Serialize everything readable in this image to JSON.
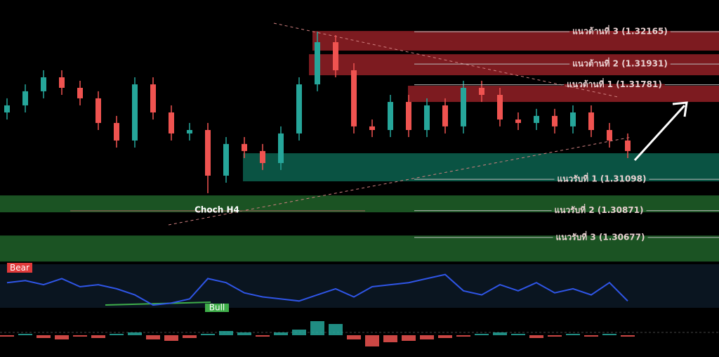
{
  "chart_data": {
    "type": "candlestick",
    "ylim": [
      1.30514,
      1.32394
    ],
    "open": [
      1.31581,
      1.31632,
      1.31734,
      1.31835,
      1.31759,
      1.31683,
      1.31505,
      1.31378,
      1.31784,
      1.31581,
      1.31429,
      1.31454,
      1.31124,
      1.31353,
      1.31302,
      1.31215,
      1.31429,
      1.31784,
      1.32089,
      1.31886,
      1.3148,
      1.31454,
      1.31657,
      1.31454,
      1.31632,
      1.3148,
      1.31759,
      1.31708,
      1.3153,
      1.31505,
      1.31556,
      1.3148,
      1.31581,
      1.31454,
      1.31378
    ],
    "high": [
      1.31683,
      1.31784,
      1.31886,
      1.31886,
      1.3181,
      1.31734,
      1.31556,
      1.31835,
      1.31835,
      1.31632,
      1.31505,
      1.31505,
      1.31403,
      1.31403,
      1.31353,
      1.3148,
      1.31835,
      1.32165,
      1.3214,
      1.31937,
      1.3153,
      1.31708,
      1.31708,
      1.31683,
      1.31683,
      1.3181,
      1.3181,
      1.31759,
      1.31581,
      1.31607,
      1.31607,
      1.31632,
      1.31632,
      1.31505,
      1.31429
    ],
    "low": [
      1.3153,
      1.31581,
      1.31683,
      1.31708,
      1.31632,
      1.31454,
      1.31327,
      1.31327,
      1.3153,
      1.31378,
      1.31378,
      1.30997,
      1.31073,
      1.31251,
      1.31165,
      1.31165,
      1.31378,
      1.31734,
      1.31835,
      1.31429,
      1.31403,
      1.31403,
      1.31403,
      1.31403,
      1.31429,
      1.31429,
      1.31657,
      1.3148,
      1.31454,
      1.31454,
      1.31429,
      1.31429,
      1.31403,
      1.31327,
      1.31251
    ],
    "close": [
      1.31632,
      1.31734,
      1.31835,
      1.31759,
      1.31683,
      1.31505,
      1.31378,
      1.31784,
      1.31581,
      1.31429,
      1.31454,
      1.31124,
      1.31353,
      1.31302,
      1.31215,
      1.31429,
      1.31784,
      1.32089,
      1.31886,
      1.3148,
      1.31454,
      1.31657,
      1.31454,
      1.31632,
      1.3148,
      1.31759,
      1.31708,
      1.3153,
      1.31505,
      1.31556,
      1.3148,
      1.31581,
      1.31454,
      1.31378,
      1.31302
    ],
    "up_color": "#26a69a",
    "down_color": "#ef5350",
    "levels": [
      {
        "label": "แนวต้านที่ 3 (1.32165)",
        "value": 1.32165,
        "low": 1.32028,
        "high": 1.3217,
        "color": "#8b1e24"
      },
      {
        "label": "แนวต้านที่ 2 (1.31931)",
        "value": 1.31931,
        "low": 1.3185,
        "high": 1.32002,
        "color": "#8b1e24"
      },
      {
        "label": "แนวต้านที่ 1 (1.31781)",
        "value": 1.31781,
        "low": 1.31657,
        "high": 1.31774,
        "color": "#8b1e24"
      },
      {
        "label": "แนวรับที่ 1 (1.31098)",
        "value": 1.31098,
        "low": 1.31083,
        "high": 1.31286,
        "color": "#0b5c4a"
      },
      {
        "label": "แนวรับที่ 2 (1.30871)",
        "value": 1.30871,
        "low": 1.30859,
        "high": 1.30981,
        "color": "#1e5c27"
      },
      {
        "label": "แนวรับที่ 3 (1.30677)",
        "value": 1.30677,
        "low": 1.30503,
        "high": 1.30691,
        "color": "#1e5c27"
      }
    ],
    "annotation": "Choch H4",
    "oscillator": {
      "values": [
        60,
        65,
        55,
        70,
        50,
        55,
        45,
        30,
        5,
        10,
        20,
        70,
        60,
        35,
        25,
        20,
        15,
        30,
        45,
        25,
        50,
        55,
        60,
        70,
        80,
        40,
        30,
        55,
        40,
        60,
        35,
        45,
        30,
        60,
        15
      ],
      "ylim": [
        0,
        100
      ],
      "color": "#2f55e6",
      "bear_label": "Bear",
      "bull_label": "Bull"
    },
    "histogram": {
      "values": [
        -1,
        1,
        -2,
        -3,
        -1,
        -2,
        1,
        2,
        -3,
        -4,
        -2,
        1,
        3,
        2,
        -1,
        2,
        4,
        10,
        8,
        -3,
        -8,
        -5,
        -4,
        -3,
        -2,
        -1,
        1,
        2,
        1,
        -2,
        -1,
        1,
        -1,
        1,
        -1
      ],
      "ylim": [
        -10,
        12
      ],
      "up_color": "#26a69a",
      "down_color": "#ef5350"
    }
  }
}
